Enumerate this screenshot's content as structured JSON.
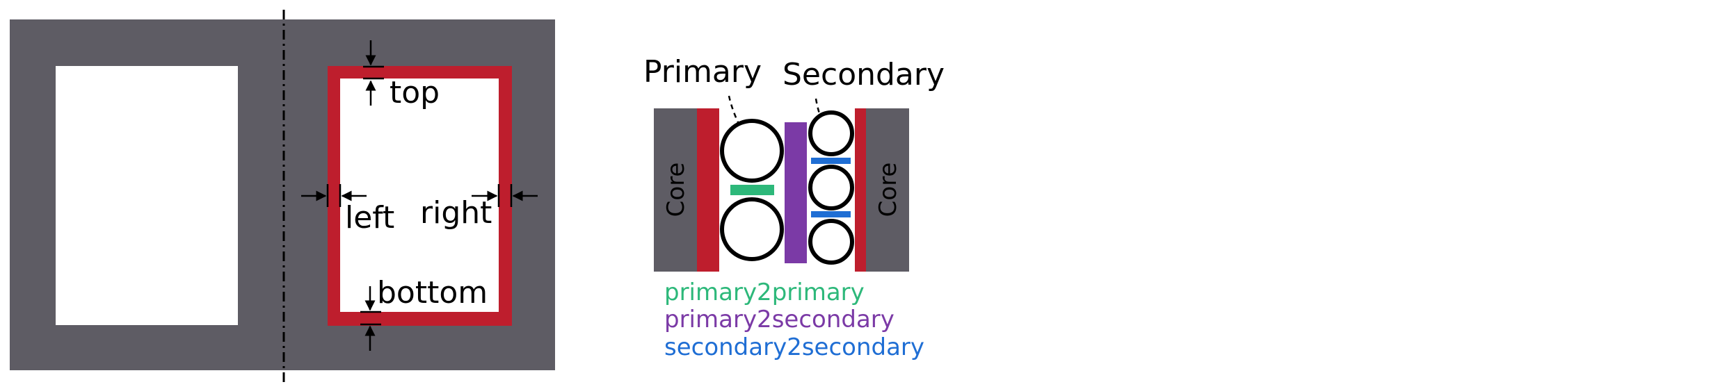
{
  "left_diagram": {
    "labels": {
      "top": "top",
      "left": "left",
      "right": "right",
      "bottom": "bottom"
    }
  },
  "right_diagram": {
    "primary_label": "Primary",
    "secondary_label": "Secondary",
    "core_left_label": "Core",
    "core_right_label": "Core",
    "legend": [
      {
        "key": "primary2primary",
        "label": "primary2primary",
        "color": "#2db87a"
      },
      {
        "key": "primary2secondary",
        "label": "primary2secondary",
        "color": "#7b3aa6"
      },
      {
        "key": "secondary2secondary",
        "label": "secondary2secondary",
        "color": "#1f6ed4"
      }
    ]
  },
  "colors": {
    "core_gray": "#5e5c64",
    "red_ring": "#be1e2d",
    "white": "#ffffff",
    "black": "#000000"
  }
}
